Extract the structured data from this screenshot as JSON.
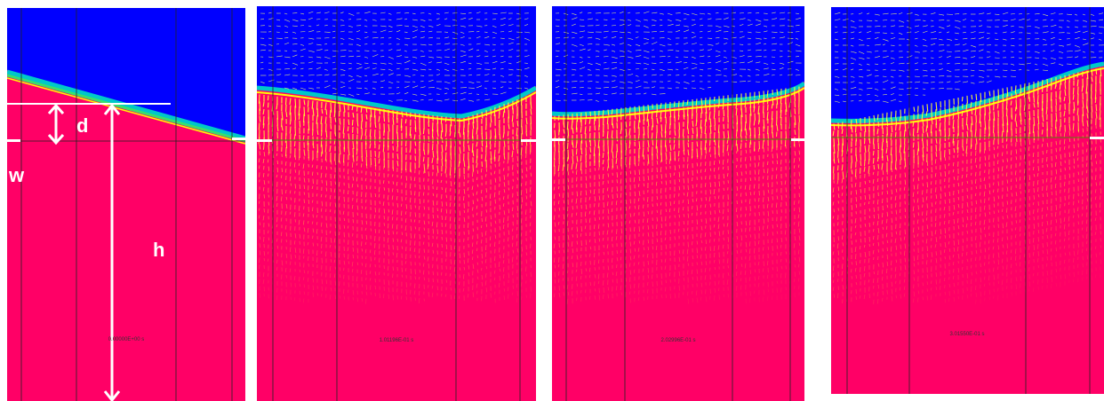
{
  "panels": [
    {
      "time_label": "0.00000E+00 s"
    },
    {
      "time_label": "1.01196E-01 s"
    },
    {
      "time_label": "2.02996E-01 s"
    },
    {
      "time_label": "3.01550E-01 s"
    }
  ],
  "annotations": {
    "d": "d",
    "w": "w",
    "h": "h"
  },
  "colors": {
    "water": "#ff0066",
    "air": "#0000ff",
    "interface_mid": "#00c8c8",
    "interface_light": "#39e06a",
    "vectors": "#ffff00",
    "grid": "#222222",
    "annotation": "#ffffff"
  }
}
